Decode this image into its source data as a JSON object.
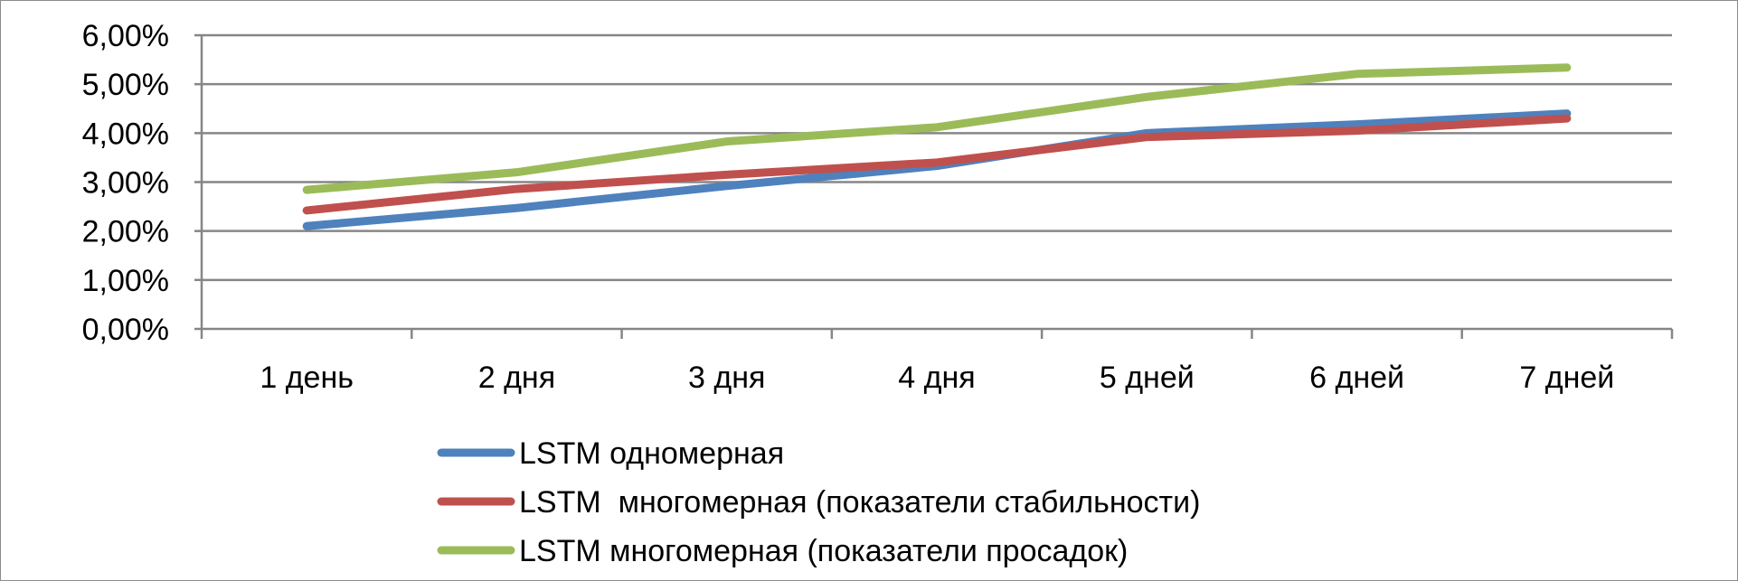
{
  "chart_data": {
    "type": "line",
    "title": "",
    "xlabel": "",
    "ylabel": "",
    "categories": [
      "1 день",
      "2 дня",
      "3 дня",
      "4 дня",
      "5 дней",
      "6 дней",
      "7 дней"
    ],
    "y_tick_labels": [
      "0,00%",
      "1,00%",
      "2,00%",
      "3,00%",
      "4,00%",
      "5,00%",
      "6,00%"
    ],
    "ylim": [
      0,
      6
    ],
    "y_unit": "percent",
    "grid": true,
    "legend_position": "bottom",
    "series": [
      {
        "name": "LSTM одномерная",
        "color": "#4f81bd",
        "values": [
          2.1,
          2.47,
          2.92,
          3.33,
          4.0,
          4.18,
          4.4
        ]
      },
      {
        "name": "LSTM  многомерная (показатели стабильности)",
        "color": "#c0504d",
        "values": [
          2.42,
          2.86,
          3.15,
          3.4,
          3.92,
          4.05,
          4.3
        ]
      },
      {
        "name": "LSTM многомерная (показатели просадок)",
        "color": "#9bbb59",
        "values": [
          2.84,
          3.2,
          3.83,
          4.12,
          4.74,
          5.21,
          5.34
        ]
      }
    ]
  }
}
